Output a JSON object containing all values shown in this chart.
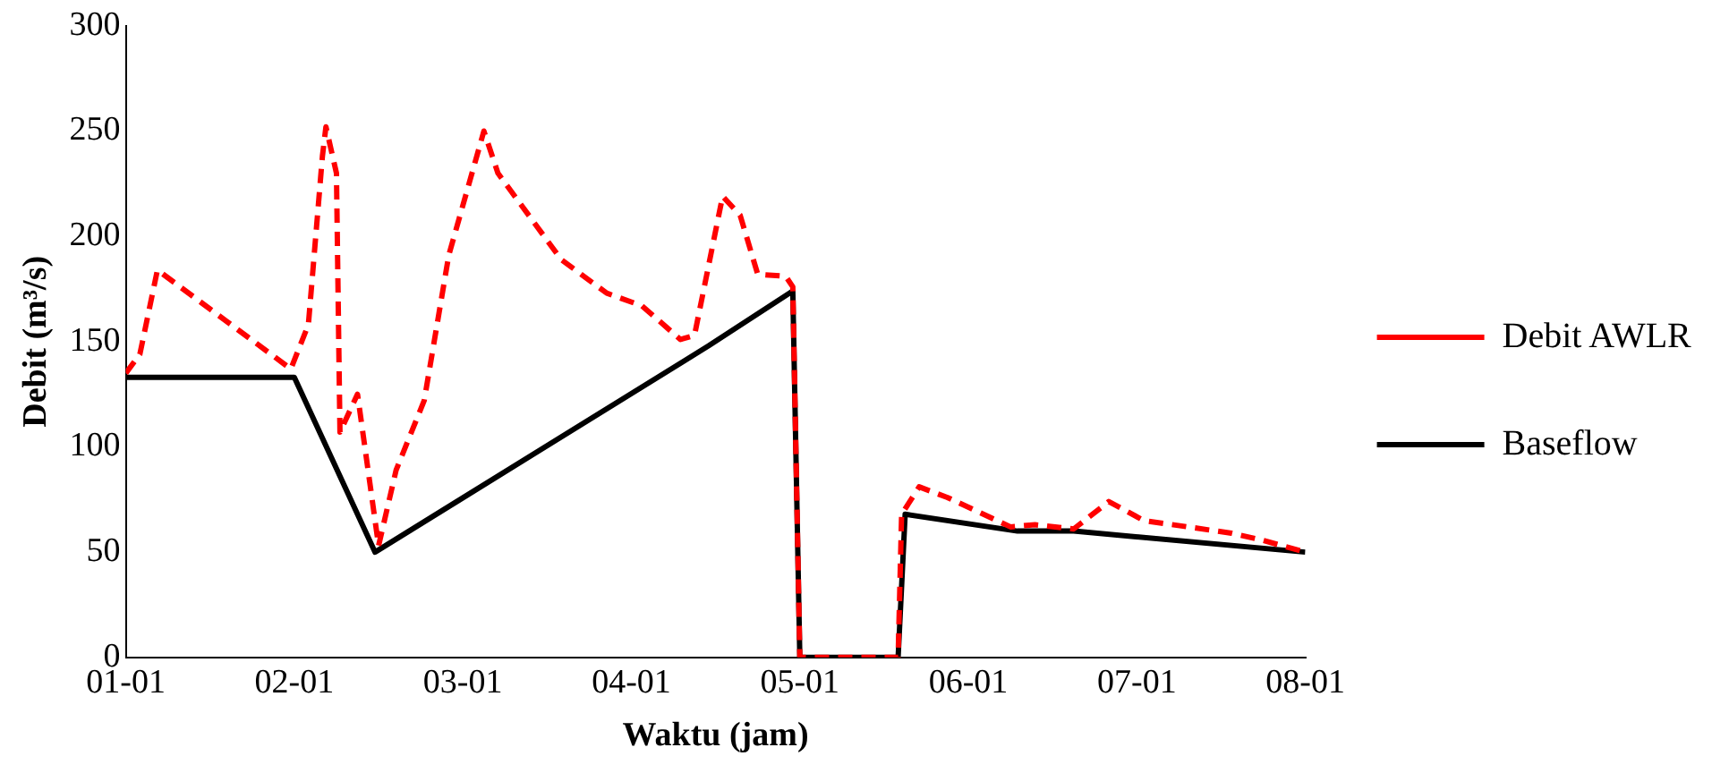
{
  "chart_data": {
    "type": "line",
    "xlabel": "Waktu (jam)",
    "ylabel": "Debit (m³/s)",
    "xlim": [
      "--01-01",
      "--01-08"
    ],
    "xticks": [
      {
        "value": "--01-01",
        "label": "01-01"
      },
      {
        "value": "--01-02",
        "label": "02-01"
      },
      {
        "value": "--01-03",
        "label": "03-01"
      },
      {
        "value": "--01-04",
        "label": "04-01"
      },
      {
        "value": "--01-05",
        "label": "05-01"
      },
      {
        "value": "--01-06",
        "label": "06-01"
      },
      {
        "value": "--01-07",
        "label": "07-01"
      },
      {
        "value": "--01-08",
        "label": "08-01"
      }
    ],
    "ylim": [
      0,
      300
    ],
    "yticks": [
      0,
      50,
      100,
      150,
      200,
      250,
      300
    ],
    "grid": false,
    "legend": "right",
    "marker": "none",
    "series": [
      {
        "name": "Debit AWLR",
        "color": "#ff0000",
        "line_style": "dashed",
        "x": [
          "--01-01T00:00",
          "--01-01T02:00",
          "--01-01T04:30",
          "--01-01T23:30",
          "--01-02T02:00",
          "--01-02T04:00",
          "--01-02T04:30",
          "--01-02T06:00",
          "--01-02T06:30",
          "--01-02T09:00",
          "--01-02T12:00",
          "--01-02T14:30",
          "--01-02T18:30",
          "--01-02T22:00",
          "--01-03T03:00",
          "--01-03T05:00",
          "--01-03T14:00",
          "--01-03T20:30",
          "--01-04T01:30",
          "--01-04T07:00",
          "--01-04T09:00",
          "--01-04T13:00",
          "--01-04T15:30",
          "--01-04T18:00",
          "--01-04T22:00",
          "--01-04T23:00",
          "--01-05T00:00",
          "--01-05T14:00",
          "--01-05T14:30",
          "--01-05T17:00",
          "--01-05T21:00",
          "--01-06T06:00",
          "--01-06T09:30",
          "--01-06T15:00",
          "--01-06T20:00",
          "--01-07T01:00",
          "--01-07T13:30",
          "--01-07T17:30",
          "--01-08T00:00"
        ],
        "values": [
          135,
          144,
          184,
          137,
          158,
          238,
          252,
          230,
          107,
          125,
          53,
          89,
          122,
          191,
          250,
          230,
          189,
          173,
          167,
          151,
          153,
          219,
          210,
          182,
          181,
          176,
          0,
          0,
          68,
          81,
          76,
          62,
          63,
          61,
          74,
          65,
          59,
          56,
          50
        ]
      },
      {
        "name": "Baseflow",
        "color": "#000000",
        "line_style": "solid",
        "x": [
          "--01-01T00:00",
          "--01-02T00:00",
          "--01-02T11:30",
          "--01-04T11:00",
          "--01-04T23:00",
          "--01-05T00:00",
          "--01-05T14:00",
          "--01-05T15:00",
          "--01-06T07:00",
          "--01-06T15:00",
          "--01-08T00:00"
        ],
        "values": [
          133,
          133,
          50,
          148,
          174,
          0,
          0,
          68,
          60,
          60,
          50
        ]
      }
    ]
  }
}
